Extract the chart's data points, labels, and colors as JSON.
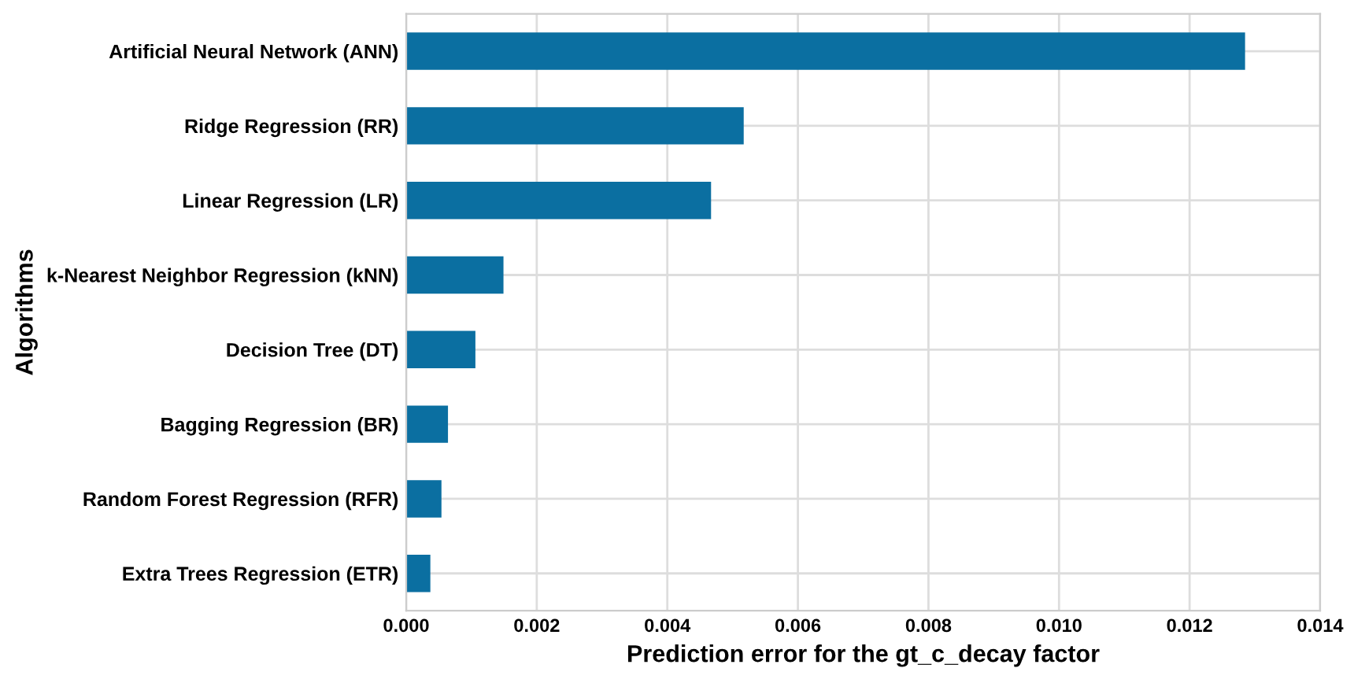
{
  "chart_data": {
    "type": "bar",
    "orientation": "horizontal",
    "xlabel": "Prediction error for the gt_c_decay factor",
    "ylabel": "Algorithms",
    "categories": [
      "Artificial Neural Network (ANN)",
      "Ridge Regression (RR)",
      "Linear Regression (LR)",
      "k-Nearest Neighbor Regression (kNN)",
      "Decision Tree (DT)",
      "Bagging Regression (BR)",
      "Random Forest Regression (RFR)",
      "Extra Trees Regression (ETR)"
    ],
    "values": [
      0.01285,
      0.00517,
      0.00467,
      0.00149,
      0.00106,
      0.00064,
      0.00054,
      0.00037
    ],
    "color": "#0b6fa1",
    "xlim": [
      0,
      0.014
    ],
    "xticks": [
      {
        "value": 0,
        "label": "0.000"
      },
      {
        "value": 0.002,
        "label": "0.002"
      },
      {
        "value": 0.004,
        "label": "0.004"
      },
      {
        "value": 0.006,
        "label": "0.006"
      },
      {
        "value": 0.008,
        "label": "0.008"
      },
      {
        "value": 0.01,
        "label": "0.010"
      },
      {
        "value": 0.012,
        "label": "0.012"
      },
      {
        "value": 0.014,
        "label": "0.014"
      }
    ],
    "grid": true,
    "legend": false
  }
}
